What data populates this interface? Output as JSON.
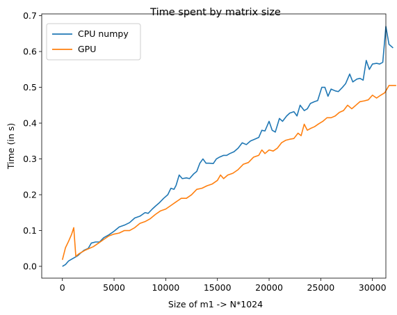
{
  "chart_data": {
    "type": "line",
    "title": "Time spent by matrix size",
    "xlabel": "Size of  m1 -> N*1024",
    "ylabel": "Time (in s)",
    "xlim": [
      -2000,
      31300
    ],
    "ylim": [
      -0.033,
      0.705
    ],
    "xticks": [
      0,
      5000,
      10000,
      15000,
      20000,
      25000,
      30000
    ],
    "yticks": [
      0.0,
      0.1,
      0.2,
      0.3,
      0.4,
      0.5,
      0.6,
      0.7
    ],
    "grid": false,
    "legend_position": "top-left",
    "series": [
      {
        "name": "CPU numpy",
        "color": "#1f77b4",
        "points": [
          [
            0,
            0.0
          ],
          [
            300,
            0.005
          ],
          [
            600,
            0.015
          ],
          [
            900,
            0.02
          ],
          [
            1200,
            0.025
          ],
          [
            1500,
            0.03
          ],
          [
            1800,
            0.038
          ],
          [
            2100,
            0.045
          ],
          [
            2500,
            0.05
          ],
          [
            2800,
            0.065
          ],
          [
            3200,
            0.068
          ],
          [
            3600,
            0.068
          ],
          [
            4000,
            0.08
          ],
          [
            4500,
            0.088
          ],
          [
            5000,
            0.098
          ],
          [
            5500,
            0.11
          ],
          [
            6000,
            0.115
          ],
          [
            6500,
            0.122
          ],
          [
            7000,
            0.135
          ],
          [
            7500,
            0.14
          ],
          [
            8000,
            0.15
          ],
          [
            8300,
            0.148
          ],
          [
            8700,
            0.16
          ],
          [
            9000,
            0.168
          ],
          [
            9400,
            0.178
          ],
          [
            9800,
            0.19
          ],
          [
            10200,
            0.2
          ],
          [
            10500,
            0.218
          ],
          [
            10800,
            0.215
          ],
          [
            11000,
            0.226
          ],
          [
            11300,
            0.255
          ],
          [
            11600,
            0.245
          ],
          [
            12000,
            0.247
          ],
          [
            12300,
            0.245
          ],
          [
            12700,
            0.258
          ],
          [
            13000,
            0.265
          ],
          [
            13300,
            0.288
          ],
          [
            13600,
            0.3
          ],
          [
            13900,
            0.288
          ],
          [
            14200,
            0.288
          ],
          [
            14600,
            0.287
          ],
          [
            14900,
            0.3
          ],
          [
            15200,
            0.305
          ],
          [
            15600,
            0.31
          ],
          [
            15900,
            0.31
          ],
          [
            16200,
            0.315
          ],
          [
            16600,
            0.32
          ],
          [
            17000,
            0.33
          ],
          [
            17400,
            0.345
          ],
          [
            17800,
            0.34
          ],
          [
            18200,
            0.35
          ],
          [
            18600,
            0.355
          ],
          [
            19000,
            0.36
          ],
          [
            19300,
            0.38
          ],
          [
            19600,
            0.378
          ],
          [
            20000,
            0.405
          ],
          [
            20300,
            0.38
          ],
          [
            20600,
            0.375
          ],
          [
            21000,
            0.413
          ],
          [
            21300,
            0.405
          ],
          [
            21700,
            0.42
          ],
          [
            22000,
            0.428
          ],
          [
            22400,
            0.432
          ],
          [
            22700,
            0.42
          ],
          [
            23000,
            0.45
          ],
          [
            23400,
            0.435
          ],
          [
            23700,
            0.44
          ],
          [
            24000,
            0.455
          ],
          [
            24400,
            0.46
          ],
          [
            24700,
            0.463
          ],
          [
            25100,
            0.5
          ],
          [
            25400,
            0.5
          ],
          [
            25700,
            0.475
          ],
          [
            26000,
            0.495
          ],
          [
            26400,
            0.49
          ],
          [
            26700,
            0.488
          ],
          [
            27100,
            0.5
          ],
          [
            27400,
            0.51
          ],
          [
            27800,
            0.537
          ],
          [
            28100,
            0.515
          ],
          [
            28500,
            0.523
          ],
          [
            28800,
            0.525
          ],
          [
            29100,
            0.52
          ],
          [
            29400,
            0.575
          ],
          [
            29700,
            0.55
          ],
          [
            30000,
            0.565
          ],
          [
            30400,
            0.567
          ],
          [
            30700,
            0.565
          ],
          [
            31000,
            0.57
          ],
          [
            31300,
            0.67
          ],
          [
            31600,
            0.62
          ],
          [
            32000,
            0.61
          ]
        ]
      },
      {
        "name": "GPU",
        "color": "#ff7f0e",
        "points": [
          [
            0,
            0.018
          ],
          [
            300,
            0.052
          ],
          [
            600,
            0.07
          ],
          [
            900,
            0.09
          ],
          [
            1100,
            0.108
          ],
          [
            1300,
            0.028
          ],
          [
            1600,
            0.035
          ],
          [
            1900,
            0.04
          ],
          [
            2200,
            0.045
          ],
          [
            2600,
            0.05
          ],
          [
            3000,
            0.055
          ],
          [
            3500,
            0.065
          ],
          [
            4000,
            0.075
          ],
          [
            4500,
            0.085
          ],
          [
            5000,
            0.09
          ],
          [
            5500,
            0.093
          ],
          [
            6000,
            0.1
          ],
          [
            6500,
            0.1
          ],
          [
            7000,
            0.108
          ],
          [
            7500,
            0.12
          ],
          [
            8000,
            0.125
          ],
          [
            8500,
            0.133
          ],
          [
            9000,
            0.145
          ],
          [
            9500,
            0.155
          ],
          [
            10000,
            0.16
          ],
          [
            10500,
            0.17
          ],
          [
            11000,
            0.18
          ],
          [
            11500,
            0.19
          ],
          [
            12000,
            0.19
          ],
          [
            12500,
            0.2
          ],
          [
            13000,
            0.215
          ],
          [
            13500,
            0.218
          ],
          [
            14000,
            0.225
          ],
          [
            14500,
            0.23
          ],
          [
            15000,
            0.24
          ],
          [
            15300,
            0.255
          ],
          [
            15600,
            0.245
          ],
          [
            16000,
            0.255
          ],
          [
            16500,
            0.26
          ],
          [
            17000,
            0.27
          ],
          [
            17500,
            0.285
          ],
          [
            18000,
            0.29
          ],
          [
            18500,
            0.305
          ],
          [
            19000,
            0.31
          ],
          [
            19300,
            0.325
          ],
          [
            19600,
            0.315
          ],
          [
            20000,
            0.325
          ],
          [
            20400,
            0.322
          ],
          [
            20800,
            0.33
          ],
          [
            21200,
            0.345
          ],
          [
            21600,
            0.352
          ],
          [
            22000,
            0.355
          ],
          [
            22400,
            0.357
          ],
          [
            22800,
            0.372
          ],
          [
            23100,
            0.365
          ],
          [
            23400,
            0.397
          ],
          [
            23700,
            0.38
          ],
          [
            24000,
            0.385
          ],
          [
            24400,
            0.39
          ],
          [
            24800,
            0.398
          ],
          [
            25200,
            0.405
          ],
          [
            25600,
            0.415
          ],
          [
            26000,
            0.415
          ],
          [
            26400,
            0.42
          ],
          [
            26800,
            0.43
          ],
          [
            27200,
            0.435
          ],
          [
            27600,
            0.45
          ],
          [
            28000,
            0.44
          ],
          [
            28400,
            0.45
          ],
          [
            28800,
            0.46
          ],
          [
            29200,
            0.462
          ],
          [
            29600,
            0.465
          ],
          [
            30000,
            0.478
          ],
          [
            30400,
            0.47
          ],
          [
            30800,
            0.478
          ],
          [
            31200,
            0.485
          ],
          [
            31600,
            0.505
          ],
          [
            32000,
            0.505
          ],
          [
            32300,
            0.505
          ]
        ]
      }
    ]
  }
}
